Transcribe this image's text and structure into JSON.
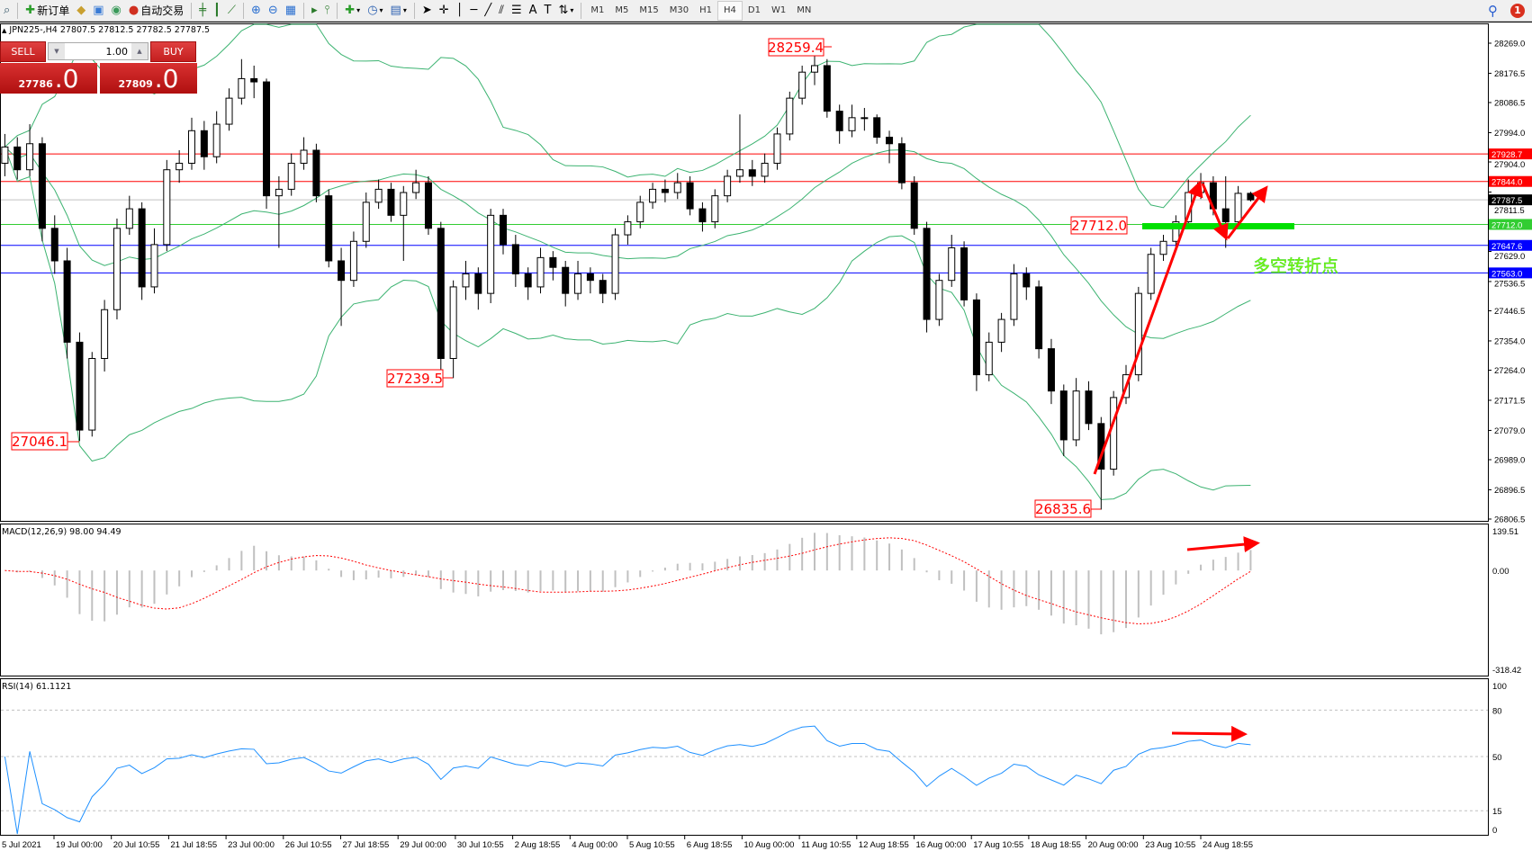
{
  "toolbar": {
    "new_order_label": "新订单",
    "auto_trade_label": "自动交易",
    "timeframes": [
      "M1",
      "M5",
      "M15",
      "M30",
      "H1",
      "H4",
      "D1",
      "W1",
      "MN"
    ],
    "active_timeframe": "H4",
    "notification_count": "1"
  },
  "chart_header": {
    "symbol": "JPN225-,H4",
    "ohlc_text": "27807.5 27812.5 27782.5 27787.5"
  },
  "trade_panel": {
    "sell_label": "SELL",
    "buy_label": "BUY",
    "lot": "1.00",
    "sell_price_main": "27786",
    "sell_price_frac": ".0",
    "buy_price_main": "27809",
    "buy_price_frac": ".0"
  },
  "annotations": {
    "high_label": "28259.4",
    "low_label_1": "27046.1",
    "low_label_2": "27239.5",
    "low_label_3": "26835.6",
    "pivot_label": "27712.0",
    "pivot_text": "多空转折点"
  },
  "colors": {
    "bull_candle": "#ffffff",
    "bear_candle": "#000000",
    "bollinger": "#3cb371",
    "resistance": "#ff0000",
    "support": "#0000ff",
    "pivot": "#00e000",
    "rsi": "#1e90ff",
    "macd_hist": "#c0c0c0",
    "macd_signal": "#ff0000",
    "arrows": "#ff0000"
  },
  "chart_data": [
    {
      "type": "candlestick",
      "title": "JPN225-,H4",
      "ylim": [
        26806.5,
        28269.0
      ],
      "price_ticks": [
        "28269.0",
        "28176.5",
        "28086.5",
        "27994.0",
        "27904.0",
        "27811.5",
        "27629.0",
        "27536.5",
        "27446.5",
        "27354.0",
        "27264.0",
        "27171.5",
        "27079.0",
        "26989.0",
        "26896.5",
        "26806.5"
      ],
      "time_labels": [
        "5 Jul 2021",
        "19 Jul 00:00",
        "20 Jul 10:55",
        "21 Jul 18:55",
        "23 Jul 00:00",
        "26 Jul 10:55",
        "27 Jul 18:55",
        "29 Jul 00:00",
        "30 Jul 10:55",
        "2 Aug 18:55",
        "4 Aug 00:00",
        "5 Aug 10:55",
        "6 Aug 18:55",
        "10 Aug 00:00",
        "11 Aug 10:55",
        "12 Aug 18:55",
        "16 Aug 00:00",
        "17 Aug 10:55",
        "18 Aug 18:55",
        "20 Aug 00:00",
        "23 Aug 10:55",
        "24 Aug 18:55"
      ],
      "ohlc": [
        [
          27900,
          27990,
          27860,
          27950
        ],
        [
          27950,
          27980,
          27850,
          27880
        ],
        [
          27880,
          28020,
          27860,
          27960
        ],
        [
          27960,
          27980,
          27660,
          27700
        ],
        [
          27700,
          27740,
          27560,
          27600
        ],
        [
          27600,
          27640,
          27300,
          27350
        ],
        [
          27350,
          27380,
          27046.1,
          27080
        ],
        [
          27080,
          27320,
          27060,
          27300
        ],
        [
          27300,
          27480,
          27260,
          27450
        ],
        [
          27450,
          27730,
          27420,
          27700
        ],
        [
          27700,
          27800,
          27680,
          27760
        ],
        [
          27760,
          27780,
          27480,
          27520
        ],
        [
          27520,
          27700,
          27500,
          27650
        ],
        [
          27650,
          27910,
          27630,
          27880
        ],
        [
          27880,
          27940,
          27840,
          27900
        ],
        [
          27900,
          28040,
          27880,
          28000
        ],
        [
          28000,
          28030,
          27880,
          27920
        ],
        [
          27920,
          28060,
          27900,
          28020
        ],
        [
          28020,
          28130,
          28000,
          28100
        ],
        [
          28100,
          28220,
          28080,
          28160
        ],
        [
          28160,
          28200,
          28100,
          28150
        ],
        [
          28150,
          28160,
          27760,
          27800
        ],
        [
          27800,
          27860,
          27640,
          27820
        ],
        [
          27820,
          27930,
          27800,
          27900
        ],
        [
          27900,
          27980,
          27880,
          27940
        ],
        [
          27940,
          27960,
          27780,
          27800
        ],
        [
          27800,
          27820,
          27580,
          27600
        ],
        [
          27600,
          27640,
          27400,
          27540
        ],
        [
          27540,
          27690,
          27520,
          27660
        ],
        [
          27660,
          27810,
          27640,
          27780
        ],
        [
          27780,
          27850,
          27760,
          27820
        ],
        [
          27820,
          27840,
          27720,
          27740
        ],
        [
          27740,
          27830,
          27600,
          27810
        ],
        [
          27810,
          27880,
          27790,
          27840
        ],
        [
          27840,
          27860,
          27680,
          27700
        ],
        [
          27700,
          27720,
          27260,
          27300
        ],
        [
          27300,
          27540,
          27239.5,
          27520
        ],
        [
          27520,
          27600,
          27480,
          27560
        ],
        [
          27560,
          27580,
          27450,
          27500
        ],
        [
          27500,
          27760,
          27470,
          27740
        ],
        [
          27740,
          27760,
          27620,
          27650
        ],
        [
          27650,
          27680,
          27520,
          27560
        ],
        [
          27560,
          27580,
          27480,
          27520
        ],
        [
          27520,
          27640,
          27500,
          27610
        ],
        [
          27610,
          27630,
          27540,
          27580
        ],
        [
          27580,
          27600,
          27460,
          27500
        ],
        [
          27500,
          27600,
          27480,
          27560
        ],
        [
          27560,
          27580,
          27500,
          27540
        ],
        [
          27540,
          27560,
          27470,
          27500
        ],
        [
          27500,
          27700,
          27480,
          27680
        ],
        [
          27680,
          27740,
          27650,
          27720
        ],
        [
          27720,
          27800,
          27700,
          27780
        ],
        [
          27780,
          27840,
          27760,
          27820
        ],
        [
          27820,
          27850,
          27780,
          27810
        ],
        [
          27810,
          27870,
          27790,
          27840
        ],
        [
          27840,
          27860,
          27740,
          27760
        ],
        [
          27760,
          27780,
          27690,
          27720
        ],
        [
          27720,
          27820,
          27700,
          27800
        ],
        [
          27800,
          27880,
          27780,
          27860
        ],
        [
          27860,
          28050,
          27840,
          27880
        ],
        [
          27880,
          27910,
          27830,
          27860
        ],
        [
          27860,
          27930,
          27840,
          27900
        ],
        [
          27900,
          28010,
          27880,
          27990
        ],
        [
          27990,
          28120,
          27970,
          28100
        ],
        [
          28100,
          28200,
          28080,
          28180
        ],
        [
          28180,
          28259.4,
          28140,
          28200
        ],
        [
          28200,
          28220,
          28040,
          28060
        ],
        [
          28060,
          28080,
          27960,
          28000
        ],
        [
          28000,
          28080,
          27980,
          28040
        ],
        [
          28040,
          28070,
          28000,
          28040
        ],
        [
          28040,
          28050,
          27960,
          27980
        ],
        [
          27980,
          28000,
          27900,
          27960
        ],
        [
          27960,
          27980,
          27820,
          27840
        ],
        [
          27840,
          27860,
          27680,
          27700
        ],
        [
          27700,
          27720,
          27380,
          27420
        ],
        [
          27420,
          27560,
          27400,
          27540
        ],
        [
          27540,
          27680,
          27520,
          27640
        ],
        [
          27640,
          27660,
          27460,
          27480
        ],
        [
          27480,
          27500,
          27200,
          27250
        ],
        [
          27250,
          27380,
          27230,
          27350
        ],
        [
          27350,
          27440,
          27320,
          27420
        ],
        [
          27420,
          27590,
          27400,
          27560
        ],
        [
          27560,
          27580,
          27480,
          27520
        ],
        [
          27520,
          27540,
          27300,
          27330
        ],
        [
          27330,
          27360,
          27160,
          27200
        ],
        [
          27200,
          27220,
          27000,
          27050
        ],
        [
          27050,
          27240,
          27030,
          27200
        ],
        [
          27200,
          27230,
          27080,
          27100
        ],
        [
          27100,
          27120,
          26835.6,
          26960
        ],
        [
          26960,
          27200,
          26940,
          27180
        ],
        [
          27180,
          27280,
          27160,
          27250
        ],
        [
          27250,
          27520,
          27230,
          27500
        ],
        [
          27500,
          27640,
          27480,
          27620
        ],
        [
          27620,
          27680,
          27600,
          27660
        ],
        [
          27660,
          27740,
          27640,
          27720
        ],
        [
          27720,
          27850,
          27700,
          27810
        ],
        [
          27810,
          27870,
          27790,
          27840
        ],
        [
          27840,
          27860,
          27740,
          27760
        ],
        [
          27760,
          27860,
          27640,
          27720
        ],
        [
          27720,
          27830,
          27700,
          27807.5
        ],
        [
          27807.5,
          27812.5,
          27782.5,
          27787.5
        ]
      ],
      "horizontal_lines": [
        {
          "value": 27928.7,
          "label": "27928.7",
          "color": "#ff0000"
        },
        {
          "value": 27844.0,
          "label": "27844.0",
          "color": "#ff0000"
        },
        {
          "value": 27787.5,
          "label": "27787.5",
          "color": "#c0c0c0",
          "label_bg": "#000000"
        },
        {
          "value": 27712.0,
          "label": "27712.0",
          "color": "#32cd32"
        },
        {
          "value": 27647.6,
          "label": "27647.6",
          "color": "#0000ff"
        },
        {
          "value": 27563.0,
          "label": "27563.0",
          "color": "#0000ff"
        }
      ],
      "indicator": "Bollinger Bands (green)"
    },
    {
      "type": "bar",
      "title": "MACD(12,26,9) 98.00 94.49",
      "ylim": [
        -318.42,
        139.51
      ],
      "tick_labels": [
        "139.51",
        "0.00",
        "-318.42"
      ]
    },
    {
      "type": "line",
      "title": "RSI(14) 61.1121",
      "ylim": [
        0,
        100
      ],
      "levels": [
        80,
        50,
        15
      ],
      "tick_labels": [
        "100",
        "80",
        "50",
        "15",
        "0"
      ]
    }
  ]
}
